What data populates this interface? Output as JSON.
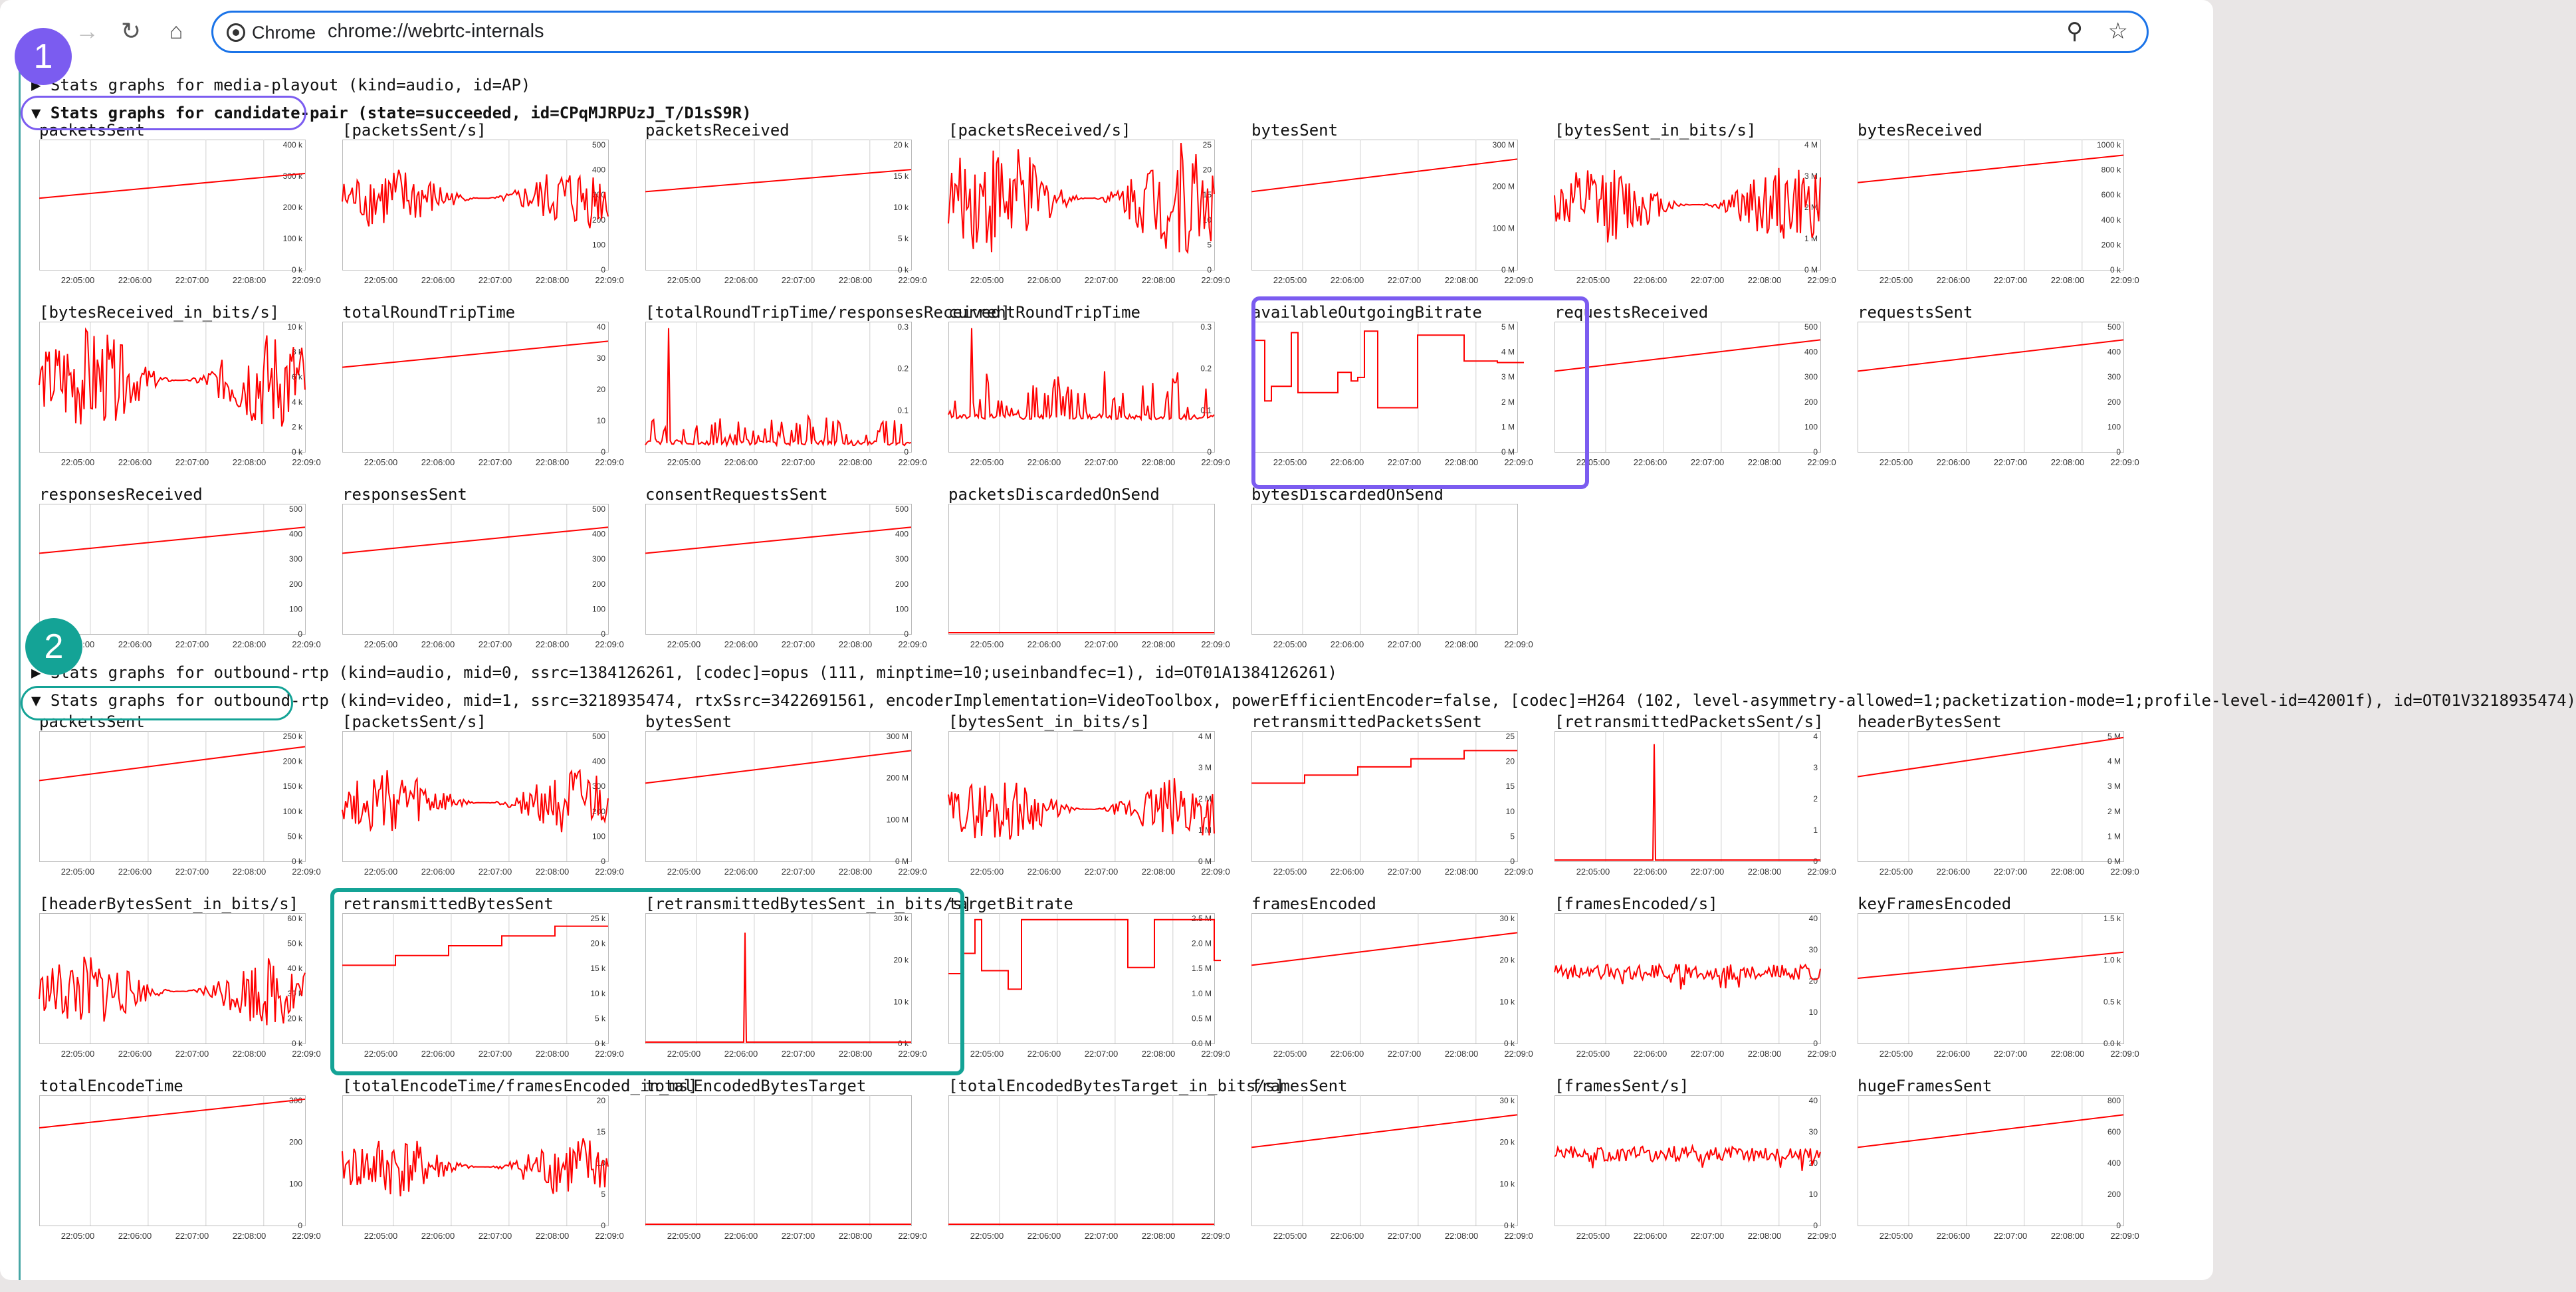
{
  "browser": {
    "chip_label": "Chrome",
    "url": "chrome://webrtc-internals",
    "colors": {
      "focus": "#1a73e8",
      "annotation1": "#7b5cf0",
      "annotation2": "#14a396",
      "plot_line": "#ff0000"
    }
  },
  "sections": [
    {
      "text": "▶ Stats graphs for media-playout (kind=audio, id=AP)",
      "expanded": false
    },
    {
      "text": "▼ Stats graphs for candidate-pair (state=succeeded, id=CPqMJRPUzJ_T/D1sS9R)",
      "expanded": true
    },
    {
      "text": "▶ Stats graphs for outbound-rtp (kind=audio, mid=0, ssrc=1384126261, [codec]=opus (111, minptime=10;useinbandfec=1), id=OT01A1384126261)",
      "expanded": false
    },
    {
      "text": "▼ Stats graphs for outbound-rtp (kind=video, mid=1, ssrc=3218935474, rtxSsrc=3422691561, encoderImplementation=VideoToolbox, powerEfficientEncoder=false, [codec]=H264 (102, level-asymmetry-allowed=1;packetization-mode=1;profile-level-id=42001f), id=OT01V3218935474)",
      "expanded": true
    }
  ],
  "x_ticks": [
    "22:05:00",
    "22:06:00",
    "22:07:00",
    "22:08:00",
    "22:09:0"
  ],
  "annotations": {
    "badge1": "1",
    "badge2": "2"
  },
  "graphs": [
    {
      "title": "packetsSent",
      "y_ticks": [
        "400 k",
        "300 k",
        "200 k",
        "100 k",
        "0 k"
      ],
      "shape": "ramp",
      "start": 0.55,
      "end": 0.74
    },
    {
      "title": "[packetsSent/s]",
      "y_ticks": [
        "500",
        "400",
        "300",
        "200",
        "100",
        "0"
      ],
      "shape": "noise",
      "level": 0.55,
      "amp": 0.25
    },
    {
      "title": "packetsReceived",
      "y_ticks": [
        "20 k",
        "15 k",
        "10 k",
        "5 k",
        "0 k"
      ],
      "shape": "ramp",
      "start": 0.6,
      "end": 0.77
    },
    {
      "title": "[packetsReceived/s]",
      "y_ticks": [
        "25",
        "20",
        "15",
        "10",
        "5",
        "0"
      ],
      "shape": "noise",
      "level": 0.55,
      "amp": 0.45
    },
    {
      "title": "bytesSent",
      "y_ticks": [
        "300 M",
        "200 M",
        "100 M",
        "0 M"
      ],
      "shape": "ramp",
      "start": 0.6,
      "end": 0.85
    },
    {
      "title": "[bytesSent_in_bits/s]",
      "y_ticks": [
        "4 M",
        "3 M",
        "2 M",
        "1 M",
        "0 M"
      ],
      "shape": "noise",
      "level": 0.5,
      "amp": 0.3
    },
    {
      "title": "bytesReceived",
      "y_ticks": [
        "1000 k",
        "800 k",
        "600 k",
        "400 k",
        "200 k",
        "0 k"
      ],
      "shape": "ramp",
      "start": 0.67,
      "end": 0.88
    },
    {
      "title": "[bytesReceived_in_bits/s]",
      "y_ticks": [
        "10 k",
        "8 k",
        "6 k",
        "4 k",
        "2 k",
        "0 k"
      ],
      "shape": "noise",
      "level": 0.55,
      "amp": 0.4
    },
    {
      "title": "totalRoundTripTime",
      "y_ticks": [
        "40",
        "30",
        "20",
        "10",
        "0"
      ],
      "shape": "ramp",
      "start": 0.65,
      "end": 0.85
    },
    {
      "title": "[totalRoundTripTime/responsesReceived]",
      "y_ticks": [
        "0.3",
        "0.2",
        "0.1",
        "0"
      ],
      "shape": "spikes",
      "level": 0.05,
      "amp": 0.2
    },
    {
      "title": "currentRoundTripTime",
      "y_ticks": [
        "0.3",
        "0.2",
        "0.1",
        "0"
      ],
      "shape": "spikes",
      "level": 0.25,
      "amp": 0.35
    },
    {
      "title": "availableOutgoingBitrate",
      "y_ticks": [
        "5 M",
        "4 M",
        "3 M",
        "2 M",
        "1 M",
        "0 M"
      ],
      "shape": "steps",
      "level": 0.6,
      "amp": 0.35
    },
    {
      "title": "requestsReceived",
      "y_ticks": [
        "500",
        "400",
        "300",
        "200",
        "100",
        "0"
      ],
      "shape": "ramp",
      "start": 0.62,
      "end": 0.86
    },
    {
      "title": "requestsSent",
      "y_ticks": [
        "500",
        "400",
        "300",
        "200",
        "100",
        "0"
      ],
      "shape": "ramp",
      "start": 0.62,
      "end": 0.86
    },
    {
      "title": "responsesReceived",
      "y_ticks": [
        "500",
        "400",
        "300",
        "200",
        "100",
        "0"
      ],
      "shape": "ramp",
      "start": 0.62,
      "end": 0.82
    },
    {
      "title": "responsesSent",
      "y_ticks": [
        "500",
        "400",
        "300",
        "200",
        "100",
        "0"
      ],
      "shape": "ramp",
      "start": 0.62,
      "end": 0.82
    },
    {
      "title": "consentRequestsSent",
      "y_ticks": [
        "500",
        "400",
        "300",
        "200",
        "100",
        "0"
      ],
      "shape": "ramp",
      "start": 0.62,
      "end": 0.82
    },
    {
      "title": "packetsDiscardedOnSend",
      "y_ticks": [],
      "shape": "flat",
      "level": 0.0
    },
    {
      "title": "bytesDiscardedOnSend",
      "y_ticks": [],
      "shape": "none"
    },
    {
      "title": "packetsSent",
      "y_ticks": [
        "250 k",
        "200 k",
        "150 k",
        "100 k",
        "50 k",
        "0 k"
      ],
      "shape": "ramp",
      "start": 0.62,
      "end": 0.88
    },
    {
      "title": "[packetsSent/s]",
      "y_ticks": [
        "500",
        "400",
        "300",
        "200",
        "100",
        "0"
      ],
      "shape": "noise",
      "level": 0.45,
      "amp": 0.25
    },
    {
      "title": "bytesSent",
      "y_ticks": [
        "300 M",
        "200 M",
        "100 M",
        "0 M"
      ],
      "shape": "ramp",
      "start": 0.6,
      "end": 0.85
    },
    {
      "title": "[bytesSent_in_bits/s]",
      "y_ticks": [
        "4 M",
        "3 M",
        "2 M",
        "1 M",
        "0 M"
      ],
      "shape": "noise",
      "level": 0.4,
      "amp": 0.25
    },
    {
      "title": "retransmittedPacketsSent",
      "y_ticks": [
        "25",
        "20",
        "15",
        "10",
        "5",
        "0"
      ],
      "shape": "steps_up",
      "start": 0.6,
      "end": 0.85
    },
    {
      "title": "[retransmittedPacketsSent/s]",
      "y_ticks": [
        "4",
        "3",
        "2",
        "1",
        "0"
      ],
      "shape": "one_spike",
      "level": 0.0,
      "amp": 0.9
    },
    {
      "title": "headerBytesSent",
      "y_ticks": [
        "5 M",
        "4 M",
        "3 M",
        "2 M",
        "1 M",
        "0 M"
      ],
      "shape": "ramp",
      "start": 0.65,
      "end": 0.95
    },
    {
      "title": "[headerBytesSent_in_bits/s]",
      "y_ticks": [
        "60 k",
        "50 k",
        "40 k",
        "30 k",
        "20 k",
        "0 k"
      ],
      "shape": "noise",
      "level": 0.4,
      "amp": 0.28
    },
    {
      "title": "retransmittedBytesSent",
      "y_ticks": [
        "25 k",
        "20 k",
        "15 k",
        "10 k",
        "5 k",
        "0 k"
      ],
      "shape": "steps_up",
      "start": 0.6,
      "end": 0.9
    },
    {
      "title": "[retransmittedBytesSent_in_bits/s]",
      "y_ticks": [
        "30 k",
        "20 k",
        "10 k",
        "0 k"
      ],
      "shape": "one_spike",
      "level": 0.0,
      "amp": 0.85
    },
    {
      "title": "targetBitrate",
      "y_ticks": [
        "2.5 M",
        "2.0 M",
        "1.5 M",
        "1.0 M",
        "0.5 M",
        "0.0 M"
      ],
      "shape": "steps",
      "level": 0.85,
      "amp": 0.5
    },
    {
      "title": "framesEncoded",
      "y_ticks": [
        "30 k",
        "20 k",
        "10 k",
        "0 k"
      ],
      "shape": "ramp",
      "start": 0.6,
      "end": 0.85
    },
    {
      "title": "[framesEncoded/s]",
      "y_ticks": [
        "40",
        "30",
        "20",
        "10",
        "0"
      ],
      "shape": "flatnoise",
      "level": 0.55,
      "amp": 0.06
    },
    {
      "title": "keyFramesEncoded",
      "y_ticks": [
        "1.5 k",
        "1.0 k",
        "0.5 k",
        "0.0 k"
      ],
      "shape": "ramp",
      "start": 0.5,
      "end": 0.7
    },
    {
      "title": "totalEncodeTime",
      "y_ticks": [
        "300",
        "200",
        "100",
        "0"
      ],
      "shape": "ramp",
      "start": 0.75,
      "end": 0.97
    },
    {
      "title": "[totalEncodeTime/framesEncoded_in_ms]",
      "y_ticks": [
        "20",
        "15",
        "10",
        "5",
        "0"
      ],
      "shape": "noise",
      "level": 0.45,
      "amp": 0.25
    },
    {
      "title": "totalEncodedBytesTarget",
      "y_ticks": [],
      "shape": "flat",
      "level": 0.0
    },
    {
      "title": "[totalEncodedBytesTarget_in_bits/s]",
      "y_ticks": [],
      "shape": "flat",
      "level": 0.0
    },
    {
      "title": "framesSent",
      "y_ticks": [
        "30 k",
        "20 k",
        "10 k",
        "0 k"
      ],
      "shape": "ramp",
      "start": 0.6,
      "end": 0.85
    },
    {
      "title": "[framesSent/s]",
      "y_ticks": [
        "40",
        "30",
        "20",
        "10",
        "0"
      ],
      "shape": "flatnoise",
      "level": 0.55,
      "amp": 0.06
    },
    {
      "title": "hugeFramesSent",
      "y_ticks": [
        "800",
        "600",
        "400",
        "200",
        "0"
      ],
      "shape": "ramp",
      "start": 0.6,
      "end": 0.85
    }
  ]
}
